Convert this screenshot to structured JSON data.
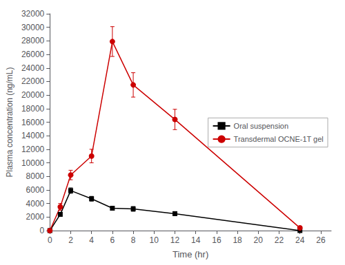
{
  "chart_data": {
    "type": "line",
    "xlabel": "Time (hr)",
    "ylabel": "Plasma concentration (ng/mL)",
    "x": [
      0,
      1,
      2,
      4,
      6,
      8,
      12,
      24
    ],
    "series": [
      {
        "name": "Oral suspension",
        "color": "#000000",
        "marker": "square",
        "values": [
          0,
          2400,
          5900,
          4700,
          3300,
          3200,
          2500,
          0
        ],
        "yerr": [
          0,
          300,
          400,
          350,
          300,
          350,
          300,
          0
        ]
      },
      {
        "name": "Transdermal OCNE-1T gel",
        "color": "#cc0000",
        "marker": "circle",
        "values": [
          0,
          3500,
          8200,
          11000,
          27900,
          21500,
          16400,
          400
        ],
        "yerr": [
          0,
          500,
          700,
          1000,
          2200,
          1800,
          1500,
          200
        ]
      }
    ],
    "xlim": [
      0,
      27
    ],
    "ylim": [
      0,
      32000
    ],
    "xticks": [
      0,
      2,
      4,
      6,
      8,
      10,
      12,
      14,
      16,
      18,
      20,
      22,
      24,
      26
    ],
    "yticks": [
      0,
      2000,
      4000,
      6000,
      8000,
      10000,
      12000,
      14000,
      16000,
      18000,
      20000,
      22000,
      24000,
      26000,
      28000,
      30000,
      32000
    ],
    "legend": "right",
    "grid": false
  }
}
